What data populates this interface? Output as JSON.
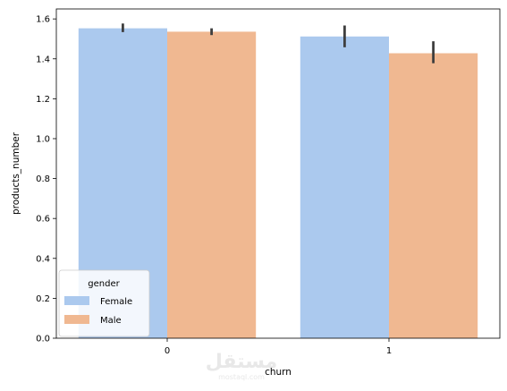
{
  "chart_data": {
    "type": "bar",
    "categories": [
      "0",
      "1"
    ],
    "xlabel": "churn",
    "ylabel": "products_number",
    "ylim": [
      0,
      1.65
    ],
    "yticks": [
      0.0,
      0.2,
      0.4,
      0.6,
      0.8,
      1.0,
      1.2,
      1.4,
      1.6
    ],
    "grid": false,
    "series": [
      {
        "name": "Female",
        "color": "#abc9ee",
        "values": [
          1.553,
          1.512
        ],
        "ci": [
          [
            1.534,
            1.577
          ],
          [
            1.458,
            1.567
          ]
        ]
      },
      {
        "name": "Male",
        "color": "#f0b891",
        "values": [
          1.536,
          1.428
        ],
        "ci": [
          [
            1.519,
            1.553
          ],
          [
            1.378,
            1.488
          ]
        ]
      }
    ],
    "legend": {
      "title": "gender",
      "location": "lower-left"
    }
  },
  "watermark": {
    "text": "مستقل",
    "subtext": "mostaql.com"
  }
}
